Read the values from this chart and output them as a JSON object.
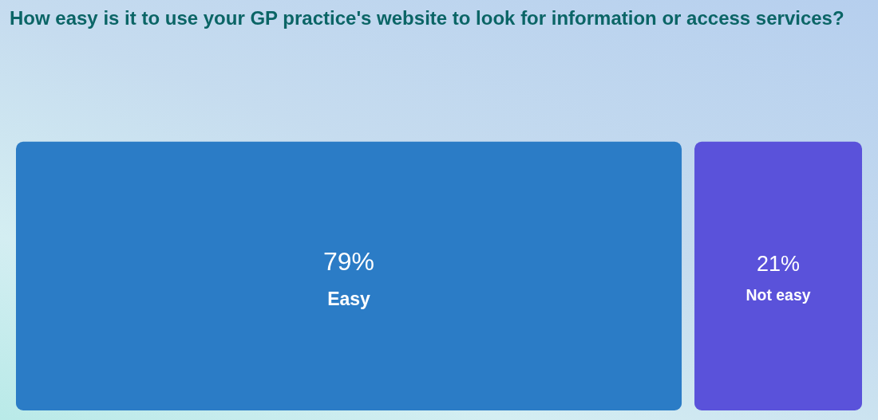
{
  "chart_data": {
    "type": "other",
    "title": "How easy is it to use your GP practice's website to look for information or access services?",
    "categories": [
      "Easy",
      "Not easy"
    ],
    "values": [
      79,
      21
    ],
    "value_labels": [
      "79%",
      "21%"
    ],
    "colors": [
      "#2b7cc6",
      "#5a52da"
    ]
  }
}
